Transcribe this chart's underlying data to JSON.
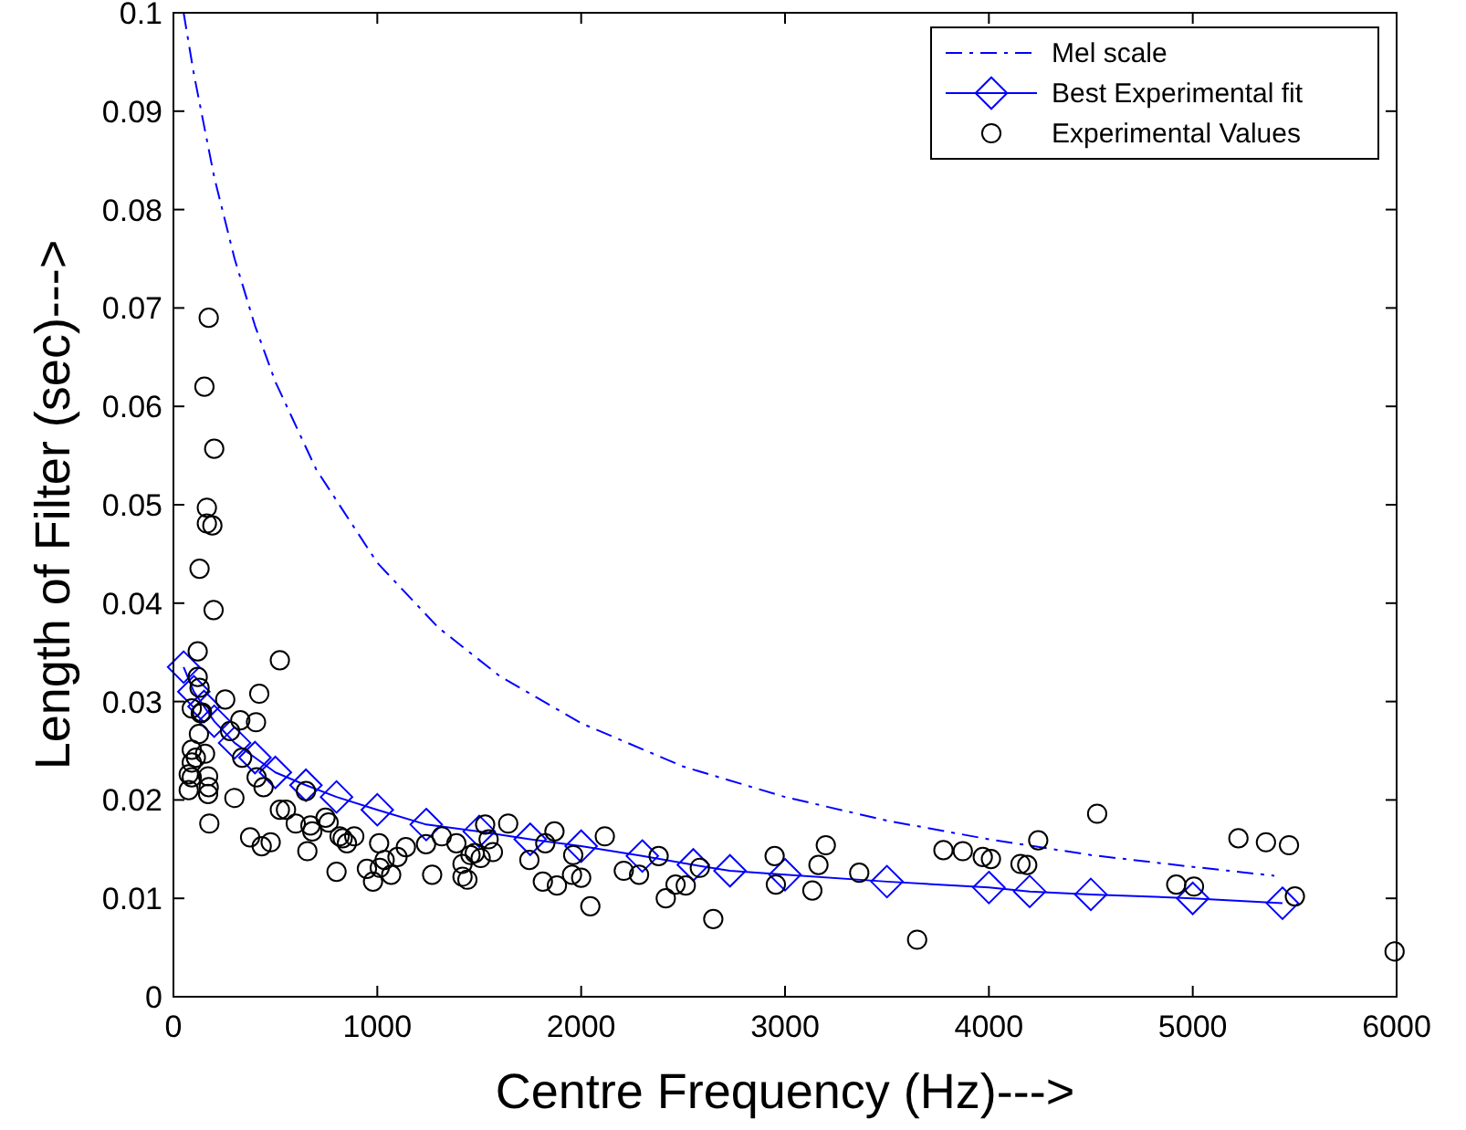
{
  "chart_data": {
    "type": "scatter",
    "xlabel": "Centre Frequency (Hz)--->",
    "ylabel": "Length of Filter (sec)--->",
    "xlim": [
      0,
      6000
    ],
    "ylim": [
      0,
      0.1
    ],
    "xticks": [
      0,
      1000,
      2000,
      3000,
      4000,
      5000,
      6000
    ],
    "yticks": [
      0,
      0.01,
      0.02,
      0.03,
      0.04,
      0.05,
      0.06,
      0.07,
      0.08,
      0.09,
      0.1
    ],
    "grid": false,
    "legend": "top right",
    "series": [
      {
        "name": "Mel scale",
        "type": "line",
        "color": "#0000ff",
        "marker": "none",
        "line_style": "dashed",
        "x": [
          50,
          100,
          200,
          300,
          400,
          500,
          700,
          1000,
          1300,
          1600,
          2000,
          2500,
          3000,
          3500,
          4000,
          4500,
          5000,
          5400
        ],
        "values": [
          0.1,
          0.0938,
          0.0833,
          0.075,
          0.0682,
          0.0625,
          0.0536,
          0.0441,
          0.0375,
          0.0326,
          0.0278,
          0.0234,
          0.0203,
          0.0179,
          0.016,
          0.0144,
          0.0132,
          0.0123
        ]
      },
      {
        "name": "Best Experimental fit",
        "type": "line",
        "color": "#0000ff",
        "marker": "diamond",
        "line_style": "solid",
        "x": [
          50,
          100,
          150,
          200,
          300,
          400,
          500,
          650,
          800,
          1000,
          1240,
          1500,
          1750,
          2000,
          2300,
          2550,
          2730,
          3000,
          3500,
          4000,
          4200,
          4500,
          5000,
          5440
        ],
        "values": [
          0.0335,
          0.031,
          0.0295,
          0.028,
          0.0258,
          0.0243,
          0.0228,
          0.0215,
          0.0203,
          0.019,
          0.0175,
          0.0168,
          0.016,
          0.0153,
          0.0143,
          0.0134,
          0.0128,
          0.0124,
          0.0117,
          0.0111,
          0.0107,
          0.0104,
          0.01,
          0.0095
        ]
      },
      {
        "name": "Experimental Values",
        "color": "#000000",
        "marker": "circle",
        "x": [
          173,
          152,
          200,
          164,
          164,
          191,
          128,
          197,
          119,
          522,
          119,
          128,
          254,
          421,
          90,
          140,
          328,
          405,
          134,
          278,
          125,
          90,
          110,
          155,
          90,
          75,
          170,
          90,
          75,
          173,
          170,
          176,
          337,
          408,
          442,
          299,
          650,
          522,
          552,
          376,
          433,
          477,
          600,
          672,
          681,
          657,
          746,
          761,
          800,
          815,
          830,
          851,
          887,
          949,
          979,
          1012,
          1009,
          1036,
          1068,
          1099,
          1140,
          1239,
          1269,
          1316,
          1388,
          1418,
          1418,
          1442,
          1457,
          1478,
          1507,
          1529,
          1546,
          1567,
          1642,
          1746,
          1812,
          1824,
          1869,
          1881,
          1961,
          1955,
          2000,
          2045,
          2116,
          2209,
          2284,
          2380,
          2415,
          2463,
          2513,
          2582,
          2648,
          2949,
          3200,
          2955,
          3164,
          3134,
          3364,
          3648,
          3777,
          3872,
          3970,
          4010,
          4155,
          4188,
          4242,
          4531,
          4919,
          5006,
          5224,
          5359,
          5472,
          5501,
          5990
        ],
        "values": [
          0.069,
          0.062,
          0.0557,
          0.0497,
          0.0481,
          0.0479,
          0.0435,
          0.0393,
          0.0351,
          0.0342,
          0.0325,
          0.0314,
          0.0302,
          0.0308,
          0.0293,
          0.0289,
          0.0281,
          0.0279,
          0.0288,
          0.027,
          0.0267,
          0.0251,
          0.0243,
          0.0247,
          0.0238,
          0.0226,
          0.0224,
          0.0223,
          0.021,
          0.0213,
          0.0206,
          0.0176,
          0.0243,
          0.0223,
          0.0213,
          0.0202,
          0.0209,
          0.019,
          0.019,
          0.0162,
          0.0153,
          0.0157,
          0.0176,
          0.0174,
          0.0168,
          0.0148,
          0.0182,
          0.0177,
          0.0127,
          0.0163,
          0.0161,
          0.0156,
          0.0163,
          0.013,
          0.0117,
          0.0131,
          0.0156,
          0.0139,
          0.0124,
          0.0142,
          0.0152,
          0.0155,
          0.0124,
          0.0163,
          0.0156,
          0.0135,
          0.0122,
          0.0119,
          0.0144,
          0.0146,
          0.0141,
          0.0175,
          0.016,
          0.0147,
          0.0176,
          0.0139,
          0.0117,
          0.0156,
          0.0168,
          0.0113,
          0.0144,
          0.0124,
          0.0121,
          0.0092,
          0.0163,
          0.0128,
          0.0124,
          0.0143,
          0.01,
          0.0114,
          0.0113,
          0.0131,
          0.0079,
          0.0143,
          0.0154,
          0.0114,
          0.0134,
          0.0108,
          0.0126,
          0.0058,
          0.0149,
          0.0148,
          0.0142,
          0.014,
          0.0135,
          0.0134,
          0.0159,
          0.0186,
          0.0114,
          0.0112,
          0.0161,
          0.0157,
          0.0154,
          0.0102,
          0.0046
        ]
      }
    ]
  }
}
